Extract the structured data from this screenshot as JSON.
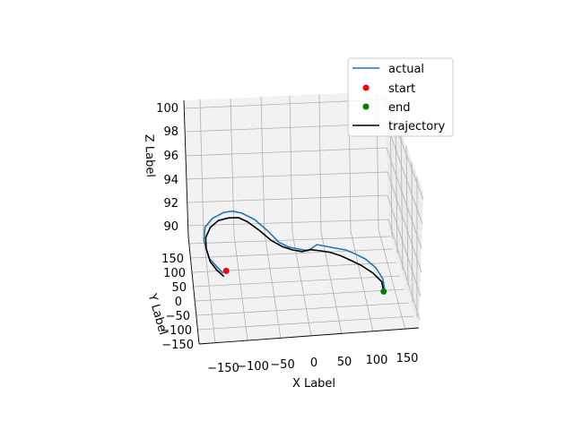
{
  "chart_data": {
    "type": "line",
    "projection": "3d",
    "grid": true,
    "xlabel": "X Label",
    "ylabel": "Y Label",
    "zlabel": "Z Label",
    "xlim": [
      -175,
      175
    ],
    "ylim": [
      -160,
      170
    ],
    "zlim": [
      89,
      101
    ],
    "x_ticks": [
      "−150",
      "−100",
      "−50",
      "0",
      "50",
      "100",
      "150"
    ],
    "y_ticks": [
      "150",
      "100",
      "50",
      "0",
      "−50",
      "−100",
      "−150"
    ],
    "z_ticks": [
      "100",
      "98",
      "96",
      "94",
      "92",
      "90"
    ],
    "legend_position": "top-right",
    "legend": [
      {
        "label": "actual",
        "kind": "line",
        "color": "#1f77b4"
      },
      {
        "label": "start",
        "kind": "marker",
        "color": "#ff0000"
      },
      {
        "label": "end",
        "kind": "marker",
        "color": "#008000"
      },
      {
        "label": "trajectory",
        "kind": "line",
        "color": "#000000"
      }
    ],
    "series": [
      {
        "name": "actual",
        "color": "#1f77b4",
        "x": [
          -140,
          -160,
          -165,
          -160,
          -145,
          -125,
          -110,
          -95,
          -75,
          -55,
          -40,
          -25,
          -10,
          5,
          20,
          35,
          50,
          65,
          80,
          95,
          110,
          120,
          122
        ],
        "y": [
          0,
          20,
          45,
          70,
          90,
          105,
          110,
          110,
          105,
          90,
          75,
          65,
          60,
          55,
          60,
          55,
          50,
          45,
          40,
          30,
          20,
          10,
          0
        ],
        "z": [
          91.6,
          92.6,
          93.7,
          94.4,
          94.8,
          95.0,
          95.0,
          94.8,
          94.3,
          93.5,
          92.8,
          92.5,
          92.4,
          92.3,
          92.7,
          92.6,
          92.5,
          92.4,
          92.1,
          91.8,
          91.2,
          90.4,
          89.5
        ]
      },
      {
        "name": "trajectory",
        "color": "#000000",
        "x": [
          -140,
          -150,
          -158,
          -162,
          -160,
          -150,
          -135,
          -118,
          -102,
          -88,
          -70,
          -52,
          -35,
          -20,
          -5,
          8,
          25,
          40,
          55,
          70,
          88,
          105,
          118,
          120
        ],
        "y": [
          -10,
          0,
          20,
          40,
          60,
          80,
          95,
          100,
          100,
          95,
          85,
          72,
          62,
          56,
          52,
          54,
          52,
          48,
          42,
          36,
          28,
          18,
          8,
          0
        ],
        "z": [
          91.5,
          91.9,
          92.3,
          93.1,
          93.7,
          94.2,
          94.5,
          94.6,
          94.6,
          94.3,
          93.7,
          93.0,
          92.6,
          92.4,
          92.3,
          92.4,
          92.3,
          92.2,
          92.0,
          91.7,
          91.3,
          90.8,
          90.2,
          89.5
        ]
      }
    ],
    "points": [
      {
        "name": "start",
        "color": "#ff0000",
        "x": -135,
        "y": 0,
        "z": 91.8
      },
      {
        "name": "end",
        "color": "#008000",
        "x": 120,
        "y": 0,
        "z": 89.5
      }
    ]
  }
}
